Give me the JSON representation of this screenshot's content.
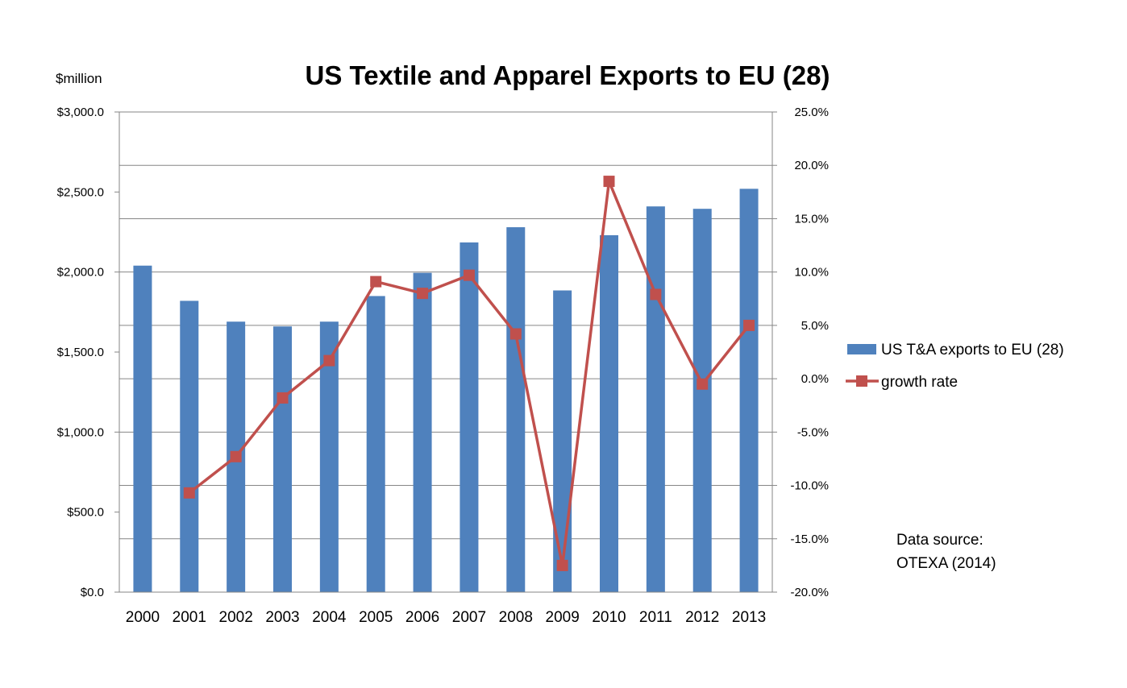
{
  "chart_data": {
    "type": "bar",
    "title": "US Textile and Apparel Exports to EU (28)",
    "y_unit_label": "$million",
    "categories": [
      "2000",
      "2001",
      "2002",
      "2003",
      "2004",
      "2005",
      "2006",
      "2007",
      "2008",
      "2009",
      "2010",
      "2011",
      "2012",
      "2013"
    ],
    "series": [
      {
        "name": "US T&A exports to EU (28)",
        "type": "bar",
        "axis": "left",
        "color": "#4F81BD",
        "values": [
          2040,
          1820,
          1690,
          1660,
          1690,
          1850,
          1995,
          2185,
          2280,
          1885,
          2230,
          2410,
          2395,
          2520
        ]
      },
      {
        "name": "growth rate",
        "type": "line",
        "axis": "right",
        "color": "#C0504D",
        "values": [
          null,
          -10.7,
          -7.3,
          -1.8,
          1.7,
          9.1,
          8.0,
          9.7,
          4.2,
          -17.5,
          18.5,
          7.9,
          -0.5,
          5.0
        ]
      }
    ],
    "y_left": {
      "min": 0,
      "max": 3000,
      "step": 500,
      "tick_labels": [
        "$0.0",
        "$500.0",
        "$1,000.0",
        "$1,500.0",
        "$2,000.0",
        "$2,500.0",
        "$3,000.0"
      ]
    },
    "y_right": {
      "min": -20,
      "max": 25,
      "step": 5,
      "tick_labels": [
        "-20.0%",
        "-15.0%",
        "-10.0%",
        "-5.0%",
        "0.0%",
        "5.0%",
        "10.0%",
        "15.0%",
        "20.0%",
        "25.0%"
      ]
    },
    "grid": true,
    "legend_position": "right",
    "annotation": [
      "Data source:",
      "OTEXA (2014)"
    ]
  }
}
